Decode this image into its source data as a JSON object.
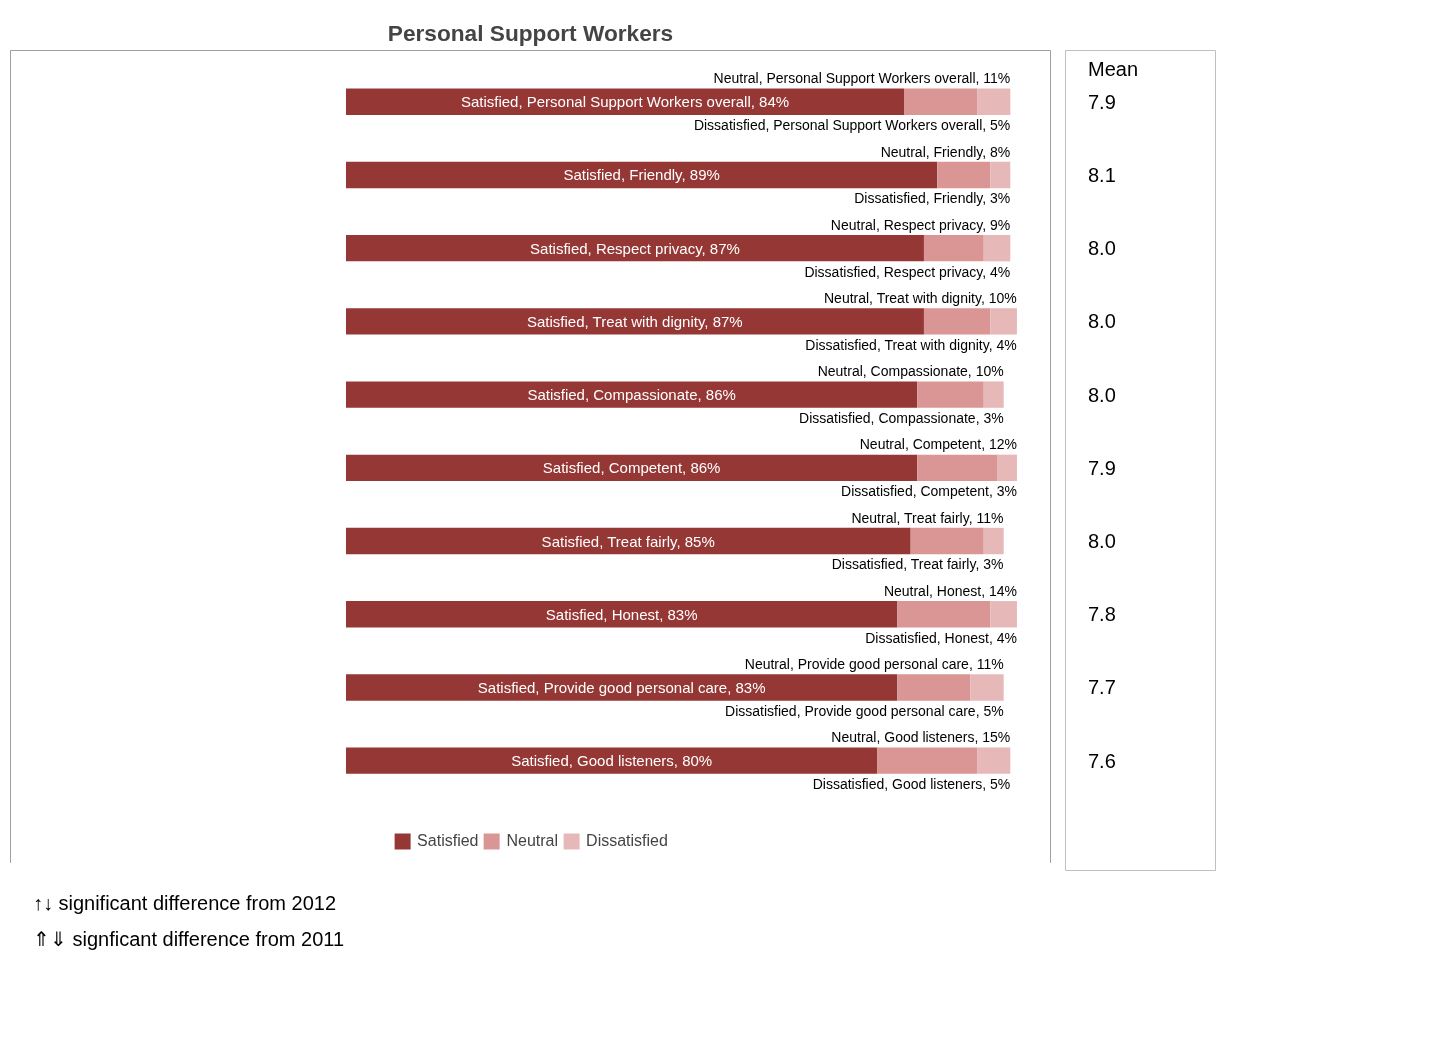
{
  "chart_data": {
    "type": "bar",
    "orientation": "horizontal",
    "stacked": true,
    "title": "Personal Support Workers",
    "categories": [
      null,
      null,
      null,
      null,
      null,
      null,
      null,
      null,
      null,
      null
    ],
    "series": [
      {
        "name": "Satisfied",
        "color": "#953735",
        "values": [
          84,
          89,
          87,
          87,
          86,
          86,
          85,
          83,
          83,
          80
        ],
        "value_labels": [
          "Satisfied, Personal Support Workers overall, 84%",
          "Satisfied, Friendly, 89%",
          "Satisfied, Respect privacy, 87%",
          "Satisfied, Treat with dignity, 87%",
          "Satisfied, Compassionate, 86%",
          "Satisfied, Competent, 86%",
          "Satisfied, Treat fairly, 85%",
          "Satisfied, Honest, 83%",
          "Satisfied, Provide good personal care, 83%",
          "Satisfied, Good listeners, 80%"
        ]
      },
      {
        "name": "Neutral",
        "color": "#d99694",
        "values": [
          11,
          8,
          9,
          10,
          10,
          12,
          11,
          14,
          11,
          15
        ],
        "value_labels": [
          "Neutral, Personal Support Workers overall, 11%",
          "Neutral, Friendly, 8%",
          "Neutral, Respect privacy, 9%",
          "Neutral, Treat with dignity, 10%",
          "Neutral, Compassionate, 10%",
          "Neutral, Competent, 12%",
          "Neutral, Treat fairly, 11%",
          "Neutral, Honest, 14%",
          "Neutral, Provide good personal care, 11%",
          "Neutral, Good listeners, 15%"
        ]
      },
      {
        "name": "Dissatisfied",
        "color": "#e6b9b8",
        "values": [
          5,
          3,
          4,
          4,
          3,
          3,
          3,
          4,
          5,
          5
        ],
        "value_labels": [
          "Dissatisfied, Personal Support Workers overall, 5%",
          "Dissatisfied, Friendly, 3%",
          "Dissatisfied, Respect privacy, 4%",
          "Dissatisfied, Treat with dignity, 4%",
          "Dissatisfied, Compassionate, 3%",
          "Dissatisfied, Competent, 3%",
          "Dissatisfied, Treat fairly, 3%",
          "Dissatisfied, Honest, 4%",
          "Dissatisfied, Provide good personal care, 5%",
          "Dissatisfied, Good listeners, 5%"
        ]
      }
    ],
    "legend": "bottom",
    "grid": false,
    "tick_labels": false,
    "annotations": [
      "Mean",
      "7.9",
      "8.1",
      "8.0",
      "8.0",
      "8.0",
      "7.9",
      "8.0",
      "7.8",
      "7.7",
      "7.6",
      "↑↓ significant difference from 2012",
      "⇑⇓ signficant difference from 2011"
    ]
  }
}
